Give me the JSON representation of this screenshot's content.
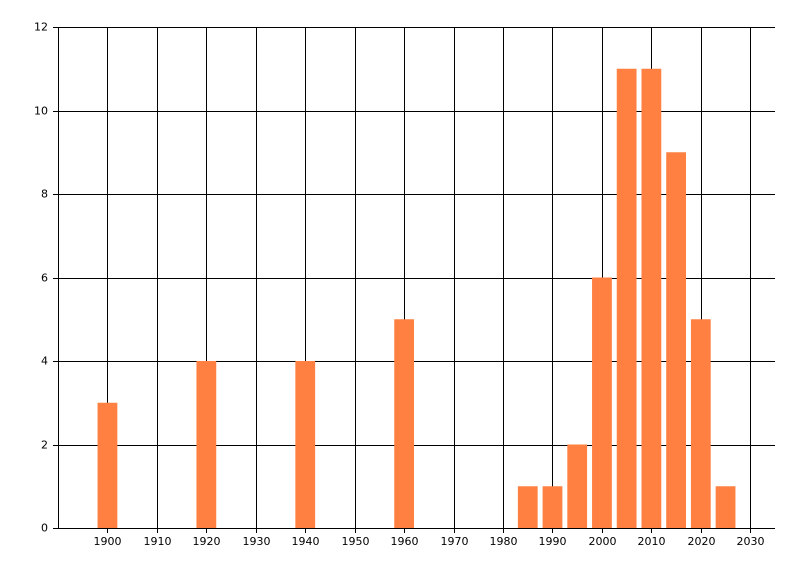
{
  "chart_data": {
    "type": "bar",
    "x": [
      1900,
      1920,
      1940,
      1960,
      1985,
      1990,
      1995,
      2000,
      2005,
      2010,
      2015,
      2020,
      2025
    ],
    "values": [
      3,
      4,
      4,
      5,
      1,
      1,
      2,
      6,
      11,
      11,
      9,
      5,
      1
    ],
    "color": "#ff8040",
    "xlim": [
      1890,
      2035
    ],
    "xticks": [
      1900,
      1910,
      1920,
      1930,
      1940,
      1950,
      1960,
      1970,
      1980,
      1990,
      2000,
      2010,
      2020,
      2030
    ],
    "ylim": [
      0,
      12
    ],
    "yticks": [
      0,
      2,
      4,
      6,
      8,
      10,
      12
    ],
    "grid": true
  }
}
